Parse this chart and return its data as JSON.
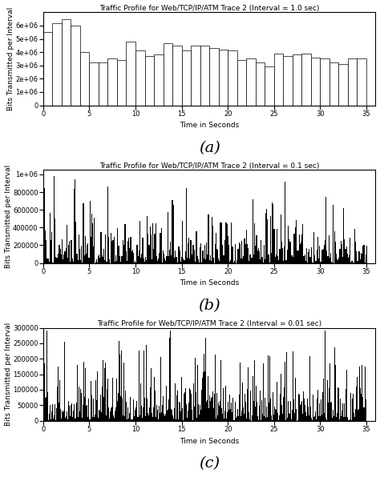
{
  "title_a": "Traffic Profile for Web/TCP/IP/ATM Trace 2 (Interval = 1.0 sec)",
  "title_b": "Traffic Profile for Web/TCP/IP/ATM Trace 2 (Interval = 0.1 sec)",
  "title_c": "Traffic Profile for Web/TCP/IP/ATM Trace 2 (Interval = 0.01 sec)",
  "xlabel": "Time in Seconds",
  "ylabel": "Bits Transmitted per Interval",
  "label_a": "(a)",
  "label_b": "(b)",
  "label_c": "(c)",
  "xlim": [
    0,
    36
  ],
  "xticks": [
    0,
    5,
    10,
    15,
    20,
    25,
    30,
    35
  ],
  "ylim_a": [
    0,
    7000000.0
  ],
  "yticks_a": [
    0,
    1000000.0,
    2000000.0,
    3000000.0,
    4000000.0,
    5000000.0,
    6000000.0
  ],
  "ylim_b": [
    0,
    1050000.0
  ],
  "yticks_b": [
    0,
    200000,
    400000,
    600000,
    800000,
    1000000
  ],
  "ylim_c": [
    0,
    300000
  ],
  "yticks_c": [
    0,
    50000,
    100000,
    150000,
    200000,
    250000,
    300000
  ],
  "seed": 42,
  "n_bars_a": 35,
  "n_bars_b": 350,
  "n_bars_c": 3500,
  "bar_color": "white",
  "bar_edge_color": "black",
  "bg_color": "white",
  "title_fontsize": 6.5,
  "axis_fontsize": 6.5,
  "tick_fontsize": 6,
  "label_fontsize": 14
}
